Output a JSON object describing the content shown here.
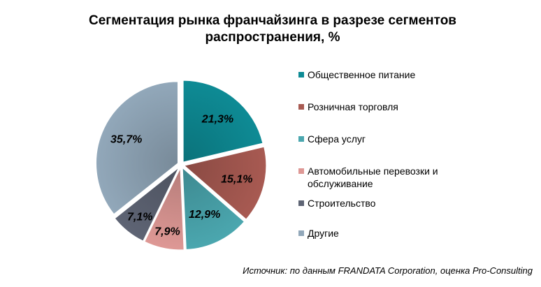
{
  "chart_data": {
    "type": "pie",
    "title_lines": [
      "Сегментация рынка франчайзинга в разрезе сегментов",
      "распространения, %"
    ],
    "legend_position": "right",
    "slices": [
      {
        "label": "Общественное питание",
        "value": 21.3,
        "value_label": "21,3%",
        "color": "#0E8B95"
      },
      {
        "label": "Розничная торговля",
        "value": 15.1,
        "value_label": "15,1%",
        "color": "#A85A52"
      },
      {
        "label": "Сфера услуг",
        "value": 12.9,
        "value_label": "12,9%",
        "color": "#4BA7AF"
      },
      {
        "label": "Автомобильные перевозки и обслуживание",
        "value": 7.9,
        "value_label": "7,9%",
        "color": "#DE9895"
      },
      {
        "label": "Строительство",
        "value": 7.1,
        "value_label": "7,1%",
        "color": "#5E6474"
      },
      {
        "label": "Другие",
        "value": 35.7,
        "value_label": "35,7%",
        "color": "#92A8BA"
      }
    ],
    "source": "Источник: по данным FRANDATA Corporation, оценка Pro-Consulting"
  }
}
